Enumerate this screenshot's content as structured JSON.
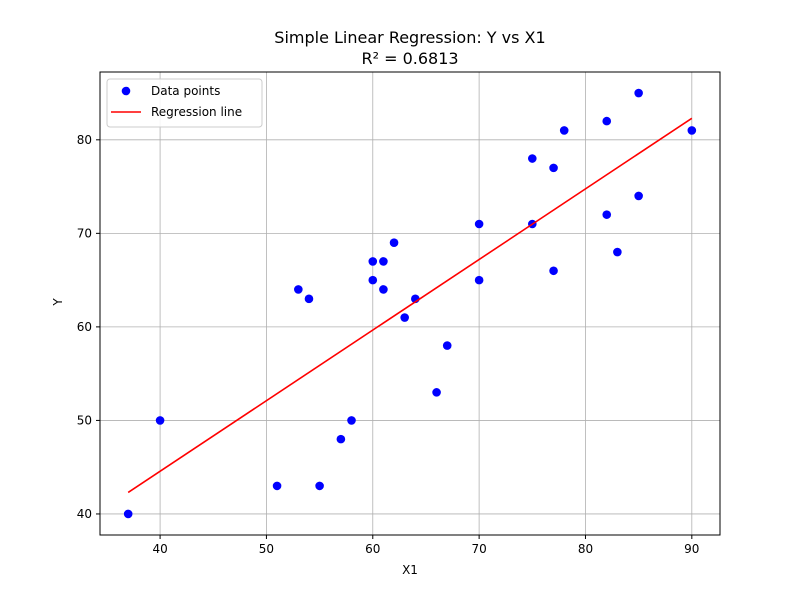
{
  "chart_data": {
    "type": "scatter",
    "title": "Simple Linear Regression: Y vs X1",
    "subtitle": "R² = 0.6813",
    "xlabel": "X1",
    "ylabel": "Y",
    "xlim": [
      34.35,
      92.65
    ],
    "ylim": [
      37.75,
      87.25
    ],
    "xticks": [
      40,
      50,
      60,
      70,
      80,
      90
    ],
    "yticks": [
      40,
      50,
      60,
      70,
      80
    ],
    "grid": true,
    "legend_position": "top-left",
    "series": [
      {
        "name": "Data points",
        "kind": "scatter",
        "color": "#0000ff",
        "points": [
          [
            37,
            40
          ],
          [
            40,
            50
          ],
          [
            51,
            43
          ],
          [
            53,
            64
          ],
          [
            54,
            63
          ],
          [
            55,
            43
          ],
          [
            57,
            48
          ],
          [
            58,
            50
          ],
          [
            60,
            67
          ],
          [
            60,
            65
          ],
          [
            61,
            67
          ],
          [
            61,
            64
          ],
          [
            62,
            69
          ],
          [
            63,
            61
          ],
          [
            64,
            63
          ],
          [
            66,
            53
          ],
          [
            67,
            58
          ],
          [
            70,
            71
          ],
          [
            70,
            65
          ],
          [
            75,
            78
          ],
          [
            75,
            71
          ],
          [
            77,
            77
          ],
          [
            77,
            66
          ],
          [
            78,
            81
          ],
          [
            82,
            82
          ],
          [
            82,
            72
          ],
          [
            83,
            68
          ],
          [
            85,
            85
          ],
          [
            85,
            74
          ],
          [
            90,
            81
          ]
        ]
      },
      {
        "name": "Regression line",
        "kind": "line",
        "color": "#ff0000",
        "points": [
          [
            37,
            42.3
          ],
          [
            90,
            82.3
          ]
        ]
      }
    ]
  }
}
